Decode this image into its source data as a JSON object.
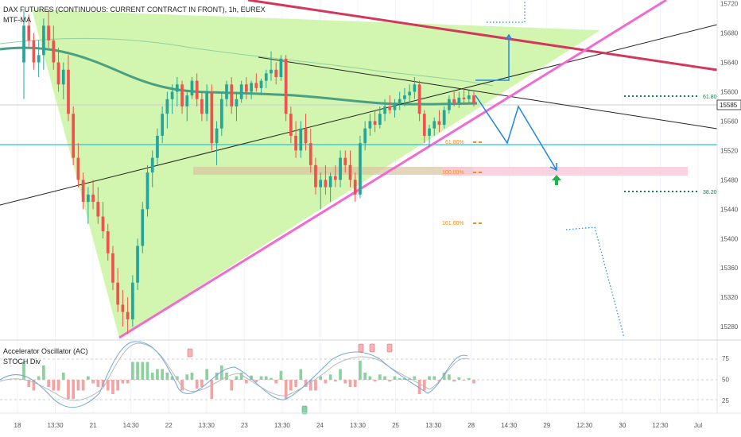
{
  "header": {
    "title": "DAX FUTURES (CONTINUOUS: CURRENT CONTRACT IN FRONT), 1h, EUREX",
    "indicator": "MTF-MA"
  },
  "oscillator_panel": {
    "title1": "Accelerator Oscillator (AC)",
    "title2": "STOCH Div"
  },
  "colors": {
    "up_candle": "#26a69a",
    "down_candle": "#ef5350",
    "triangle_fill": "#cdf5a6",
    "pink_line": "#f06bd0",
    "red_line": "#d3385a",
    "cyan_line": "#26c6da",
    "fib_orange": "#f08c1e",
    "ma_line": "#4aa080",
    "projection_blue": "#1e88e5",
    "dotted_green": "#1a7f4b",
    "stoch_k": "#6fa8dc",
    "stoch_d": "#b0b0b0"
  },
  "chart_data": [
    {
      "type": "candlestick",
      "title": "DAX FUTURES (CONTINUOUS: CURRENT CONTRACT IN FRONT), 1h, EUREX",
      "x_ticks": [
        "18",
        "13:30",
        "21",
        "14:30",
        "22",
        "13:30",
        "23",
        "13:30",
        "24",
        "13:30",
        "25",
        "13:30",
        "28",
        "14:30",
        "29",
        "12:30",
        "30",
        "12:30",
        "Jul"
      ],
      "y_ticks": [
        15720,
        15680,
        15640,
        15600,
        15560,
        15520,
        15480,
        15440,
        15400,
        15360,
        15320,
        15280
      ],
      "current_price": 15585,
      "ylim": [
        15265,
        15725
      ],
      "bars": [
        [
          15640,
          15710,
          15590,
          15690
        ],
        [
          15690,
          15705,
          15660,
          15670
        ],
        [
          15670,
          15680,
          15630,
          15640
        ],
        [
          15640,
          15670,
          15620,
          15650
        ],
        [
          15650,
          15700,
          15630,
          15690
        ],
        [
          15690,
          15712,
          15660,
          15670
        ],
        [
          15670,
          15690,
          15630,
          15640
        ],
        [
          15640,
          15660,
          15600,
          15610
        ],
        [
          15610,
          15640,
          15590,
          15630
        ],
        [
          15630,
          15650,
          15560,
          15570
        ],
        [
          15570,
          15580,
          15500,
          15510
        ],
        [
          15510,
          15530,
          15470,
          15480
        ],
        [
          15480,
          15490,
          15440,
          15450
        ],
        [
          15450,
          15470,
          15420,
          15460
        ],
        [
          15460,
          15480,
          15440,
          15450
        ],
        [
          15450,
          15470,
          15420,
          15430
        ],
        [
          15430,
          15450,
          15400,
          15410
        ],
        [
          15410,
          15420,
          15370,
          15380
        ],
        [
          15380,
          15390,
          15330,
          15340
        ],
        [
          15340,
          15360,
          15300,
          15310
        ],
        [
          15310,
          15330,
          15280,
          15300
        ],
        [
          15300,
          15320,
          15270,
          15290
        ],
        [
          15290,
          15350,
          15280,
          15340
        ],
        [
          15340,
          15400,
          15330,
          15390
        ],
        [
          15390,
          15450,
          15380,
          15440
        ],
        [
          15440,
          15500,
          15430,
          15490
        ],
        [
          15490,
          15520,
          15470,
          15510
        ],
        [
          15510,
          15550,
          15500,
          15540
        ],
        [
          15540,
          15580,
          15530,
          15570
        ],
        [
          15570,
          15600,
          15550,
          15590
        ],
        [
          15590,
          15610,
          15570,
          15600
        ],
        [
          15600,
          15620,
          15580,
          15610
        ],
        [
          15610,
          15615,
          15570,
          15580
        ],
        [
          15580,
          15600,
          15560,
          15595
        ],
        [
          15595,
          15620,
          15590,
          15615
        ],
        [
          15615,
          15625,
          15580,
          15590
        ],
        [
          15590,
          15600,
          15560,
          15570
        ],
        [
          15570,
          15610,
          15560,
          15600
        ],
        [
          15600,
          15610,
          15520,
          15530
        ],
        [
          15530,
          15560,
          15500,
          15550
        ],
        [
          15550,
          15600,
          15540,
          15590
        ],
        [
          15590,
          15615,
          15580,
          15610
        ],
        [
          15610,
          15620,
          15570,
          15580
        ],
        [
          15580,
          15600,
          15560,
          15590
        ],
        [
          15590,
          15615,
          15585,
          15610
        ],
        [
          15610,
          15620,
          15590,
          15600
        ],
        [
          15600,
          15615,
          15590,
          15612
        ],
        [
          15612,
          15625,
          15600,
          15605
        ],
        [
          15605,
          15618,
          15595,
          15615
        ],
        [
          15615,
          15630,
          15605,
          15625
        ],
        [
          15625,
          15655,
          15615,
          15630
        ],
        [
          15630,
          15640,
          15610,
          15620
        ],
        [
          15620,
          15650,
          15615,
          15645
        ],
        [
          15645,
          15650,
          15560,
          15570
        ],
        [
          15570,
          15580,
          15530,
          15540
        ],
        [
          15540,
          15560,
          15510,
          15520
        ],
        [
          15520,
          15560,
          15510,
          15550
        ],
        [
          15550,
          15570,
          15520,
          15530
        ],
        [
          15530,
          15550,
          15490,
          15500
        ],
        [
          15500,
          15510,
          15460,
          15470
        ],
        [
          15470,
          15490,
          15440,
          15480
        ],
        [
          15480,
          15500,
          15460,
          15470
        ],
        [
          15470,
          15490,
          15450,
          15485
        ],
        [
          15485,
          15500,
          15470,
          15480
        ],
        [
          15480,
          15520,
          15470,
          15510
        ],
        [
          15510,
          15520,
          15490,
          15500
        ],
        [
          15500,
          15520,
          15470,
          15480
        ],
        [
          15480,
          15490,
          15450,
          15460
        ],
        [
          15460,
          15540,
          15455,
          15530
        ],
        [
          15530,
          15560,
          15520,
          15550
        ],
        [
          15550,
          15570,
          15540,
          15560
        ],
        [
          15560,
          15575,
          15545,
          15555
        ],
        [
          15555,
          15580,
          15550,
          15570
        ],
        [
          15570,
          15590,
          15560,
          15580
        ],
        [
          15580,
          15595,
          15570,
          15575
        ],
        [
          15575,
          15590,
          15565,
          15585
        ],
        [
          15585,
          15600,
          15575,
          15590
        ],
        [
          15590,
          15605,
          15580,
          15595
        ],
        [
          15595,
          15610,
          15585,
          15600
        ],
        [
          15600,
          15620,
          15590,
          15610
        ],
        [
          15610,
          15615,
          15560,
          15570
        ],
        [
          15570,
          15575,
          15530,
          15540
        ],
        [
          15540,
          15555,
          15525,
          15550
        ],
        [
          15550,
          15565,
          15540,
          15560
        ],
        [
          15560,
          15575,
          15545,
          15555
        ],
        [
          15555,
          15580,
          15550,
          15575
        ],
        [
          15575,
          15595,
          15570,
          15590
        ],
        [
          15590,
          15600,
          15580,
          15585
        ],
        [
          15585,
          15600,
          15578,
          15592
        ],
        [
          15592,
          15605,
          15585,
          15590
        ],
        [
          15590,
          15602,
          15585,
          15595
        ],
        [
          15595,
          15600,
          15580,
          15585
        ]
      ]
    },
    {
      "type": "oscillator",
      "title": "Accelerator Oscillator (AC)",
      "y_ticks": [
        75,
        50,
        25
      ],
      "ylim": [
        10,
        95
      ]
    }
  ],
  "annotations": {
    "fib_left": [
      "61.80%",
      "100.00%",
      "161.60%"
    ],
    "fib_right": [
      "61.80%",
      "38.20%"
    ]
  }
}
